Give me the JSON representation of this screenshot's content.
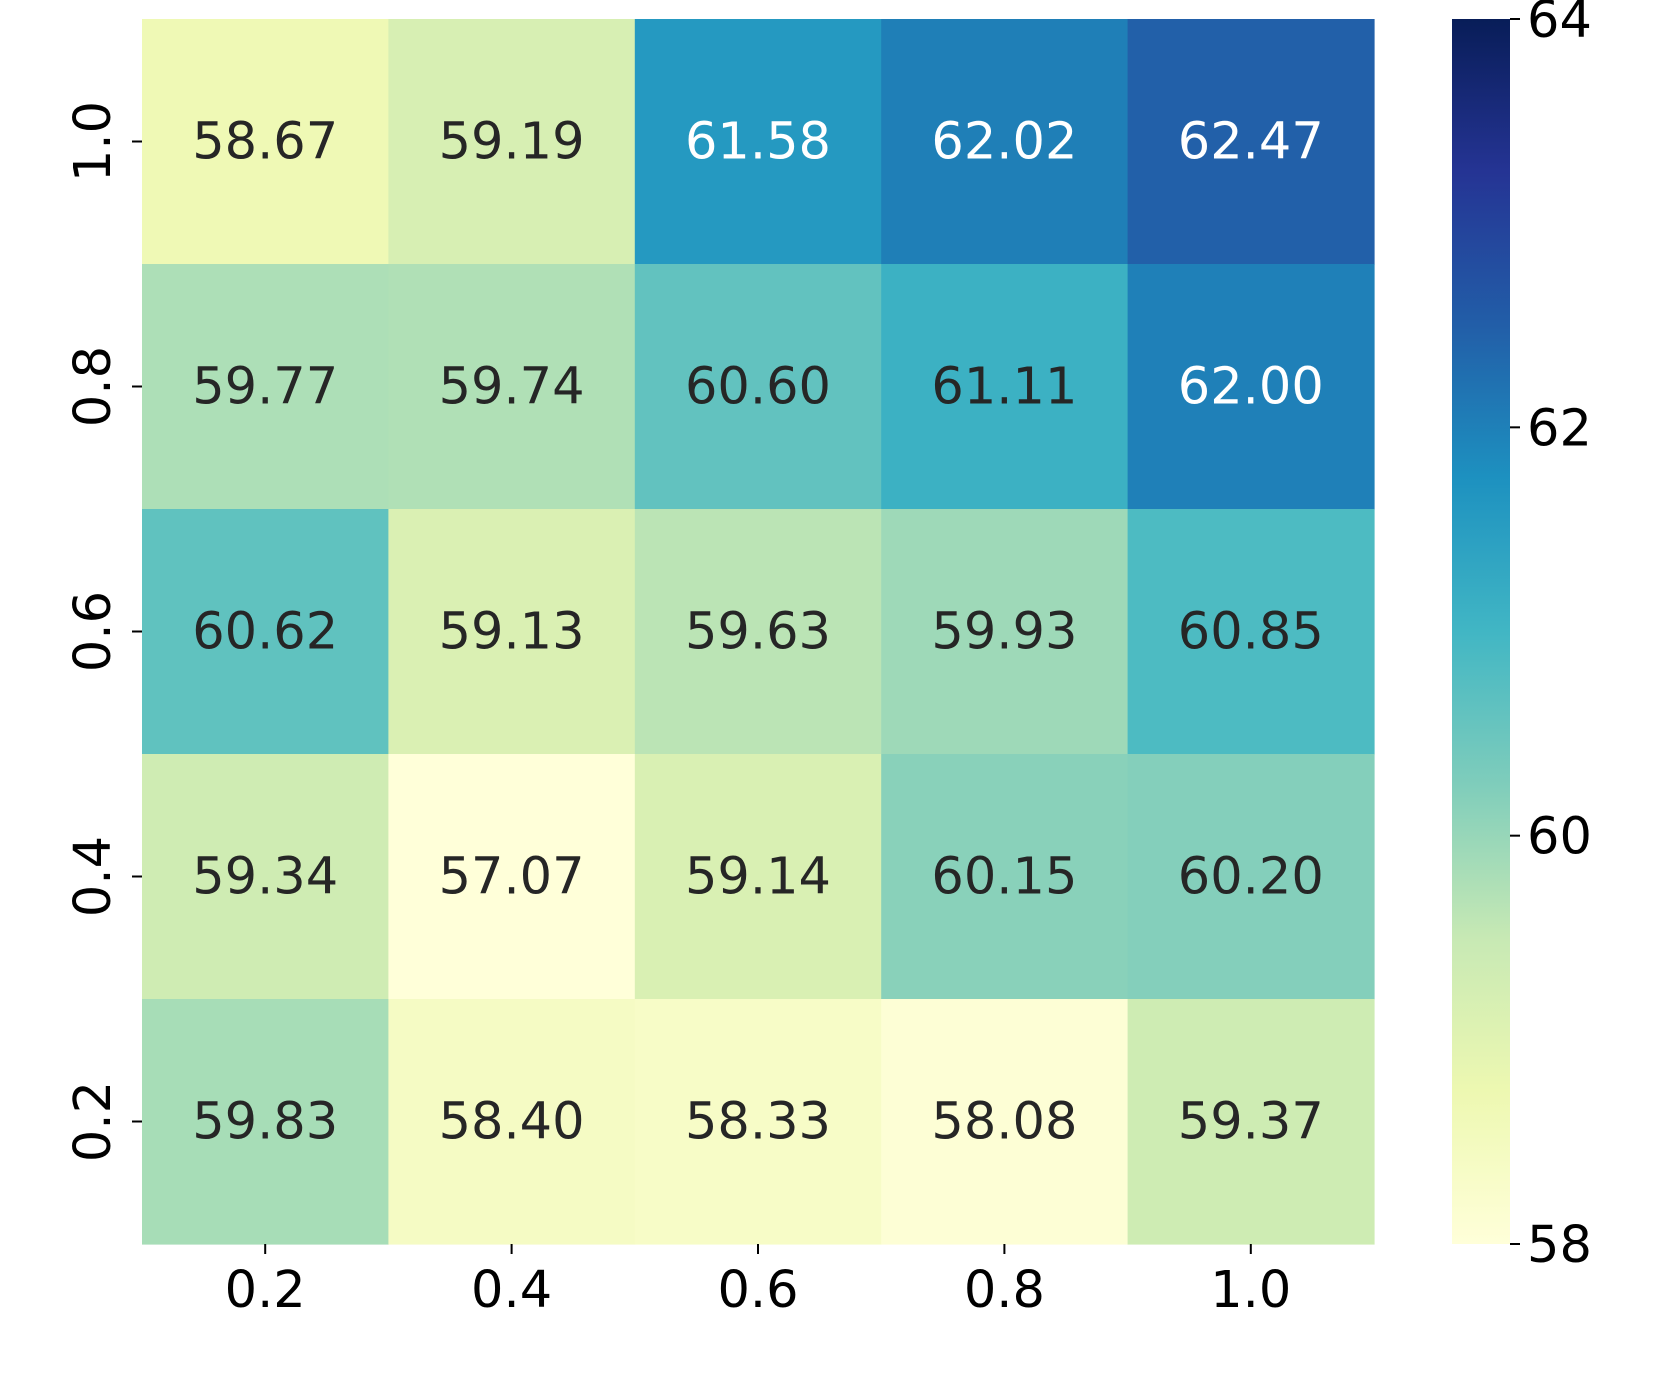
{
  "chart_data": {
    "type": "heatmap",
    "title": "",
    "xlabel": "",
    "ylabel": "",
    "x_categories": [
      "0.2",
      "0.4",
      "0.6",
      "0.8",
      "1.0"
    ],
    "y_categories_top_to_bottom": [
      "1.0",
      "0.8",
      "0.6",
      "0.4",
      "0.2"
    ],
    "values": [
      [
        58.67,
        59.19,
        61.58,
        62.02,
        62.47
      ],
      [
        59.77,
        59.74,
        60.6,
        61.11,
        62.0
      ],
      [
        60.62,
        59.13,
        59.63,
        59.93,
        60.85
      ],
      [
        59.34,
        57.07,
        59.14,
        60.15,
        60.2
      ],
      [
        59.83,
        58.4,
        58.33,
        58.08,
        59.37
      ]
    ],
    "value_labels": [
      [
        "58.67",
        "59.19",
        "61.58",
        "62.02",
        "62.47"
      ],
      [
        "59.77",
        "59.74",
        "60.60",
        "61.11",
        "62.00"
      ],
      [
        "60.62",
        "59.13",
        "59.63",
        "59.93",
        "60.85"
      ],
      [
        "59.34",
        "57.07",
        "59.14",
        "60.15",
        "60.20"
      ],
      [
        "59.83",
        "58.40",
        "58.33",
        "58.08",
        "59.37"
      ]
    ],
    "colorbar": {
      "min": 58,
      "max": 64,
      "ticks": [
        58,
        60,
        62,
        64
      ],
      "tick_labels": [
        "58",
        "60",
        "62",
        "64"
      ],
      "colormap": "YlGnBu",
      "colormap_stops": [
        "#ffffd9",
        "#edf8b1",
        "#c7e9b4",
        "#7fcdbb",
        "#41b6c4",
        "#1d91c0",
        "#225ea8",
        "#253494",
        "#081d58"
      ]
    },
    "annotation_colors": {
      "dark": "#262626",
      "light": "#ffffff"
    },
    "grid": false
  }
}
